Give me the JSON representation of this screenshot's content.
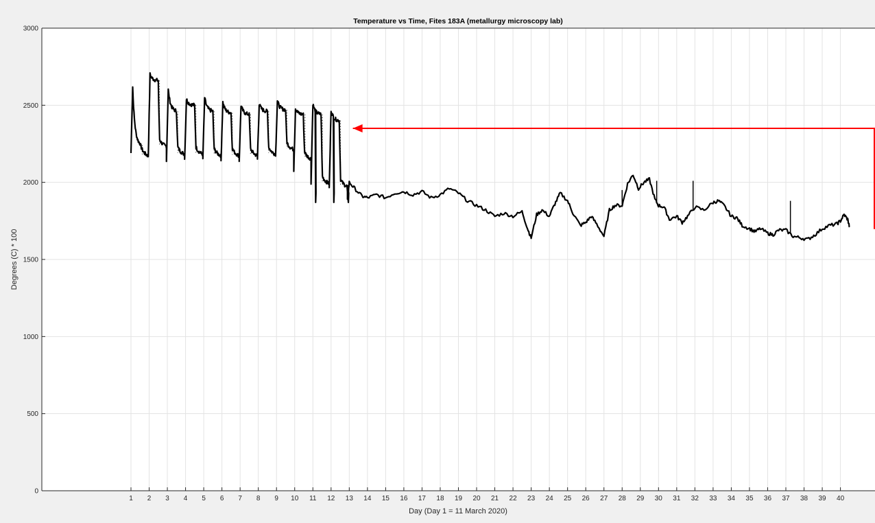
{
  "chart_data": {
    "type": "line",
    "title": "Temperature vs Time, Fites 183A (metallurgy microscopy lab)",
    "xlabel": "Day (Day 1 = 11 March 2020)",
    "ylabel": "Degrees (C) * 100",
    "xlim": [
      -3.9,
      41.9
    ],
    "ylim": [
      0,
      3000
    ],
    "xticks": [
      "1",
      "2",
      "3",
      "4",
      "5",
      "6",
      "7",
      "8",
      "9",
      "10",
      "11",
      "12",
      "13",
      "14",
      "15",
      "16",
      "17",
      "18",
      "19",
      "20",
      "21",
      "22",
      "23",
      "24",
      "25",
      "26",
      "27",
      "28",
      "29",
      "30",
      "31",
      "32",
      "33",
      "34",
      "35",
      "36",
      "37",
      "38",
      "39",
      "40"
    ],
    "yticks": [
      0,
      500,
      1000,
      1500,
      2000,
      2500,
      3000
    ],
    "grid": true,
    "series": [
      {
        "color": "#000000",
        "cycles": [
          {
            "start": 1.0,
            "low": 2190,
            "peak": 2620,
            "plateau": 2240,
            "settle": 2180
          },
          {
            "start": 1.95,
            "low": 2170,
            "peak": 2700,
            "plateau": 2660,
            "settle": 2240
          },
          {
            "start": 2.95,
            "low": 2140,
            "peak": 2600,
            "plateau": 2460,
            "settle": 2190
          },
          {
            "start": 3.95,
            "low": 2150,
            "peak": 2540,
            "plateau": 2500,
            "settle": 2190
          },
          {
            "start": 4.95,
            "low": 2150,
            "peak": 2550,
            "plateau": 2460,
            "settle": 2180
          },
          {
            "start": 5.95,
            "low": 2140,
            "peak": 2520,
            "plateau": 2450,
            "settle": 2180
          },
          {
            "start": 6.95,
            "low": 2140,
            "peak": 2500,
            "plateau": 2440,
            "settle": 2180
          },
          {
            "start": 7.95,
            "low": 2150,
            "peak": 2510,
            "plateau": 2460,
            "settle": 2190
          },
          {
            "start": 8.95,
            "low": 2180,
            "peak": 2530,
            "plateau": 2470,
            "settle": 2220
          },
          {
            "start": 9.95,
            "low": 2080,
            "peak": 2480,
            "plateau": 2440,
            "settle": 2160
          },
          {
            "start": 10.9,
            "low": 2000,
            "peak": 2510,
            "plateau": 2440,
            "settle": 2000
          },
          {
            "start": 11.9,
            "low": 1960,
            "peak": 2470,
            "plateau": 2400,
            "settle": 1980
          }
        ],
        "cycle_end": 12.9,
        "drop_times": [
          11.15,
          12.15,
          12.95
        ],
        "drop_low": 1870,
        "x": [
          12.9,
          13.0,
          13.3,
          13.7,
          14.0,
          14.5,
          15.0,
          15.5,
          16.0,
          16.5,
          17.0,
          17.5,
          18.0,
          18.5,
          19.0,
          19.5,
          20.0,
          20.5,
          21.0,
          21.5,
          22.0,
          22.5,
          22.8,
          23.0,
          23.3,
          23.6,
          24.0,
          24.3,
          24.6,
          25.0,
          25.3,
          25.7,
          26.0,
          26.3,
          26.6,
          27.0,
          27.3,
          27.6,
          28.0,
          28.3,
          28.6,
          28.9,
          29.2,
          29.5,
          29.8,
          30.0,
          30.3,
          30.6,
          31.0,
          31.3,
          31.6,
          32.0,
          32.5,
          33.0,
          33.3,
          33.6,
          34.0,
          34.3,
          34.6,
          35.0,
          35.3,
          35.6,
          36.0,
          36.3,
          36.6,
          37.0,
          37.4,
          37.8,
          38.2,
          38.6,
          39.0,
          39.4,
          39.8,
          40.0,
          40.2,
          40.4,
          40.5
        ],
        "y": [
          1880,
          2000,
          1960,
          1910,
          1900,
          1920,
          1900,
          1930,
          1940,
          1920,
          1940,
          1900,
          1920,
          1960,
          1930,
          1880,
          1850,
          1820,
          1780,
          1800,
          1780,
          1810,
          1700,
          1640,
          1790,
          1820,
          1780,
          1860,
          1930,
          1880,
          1800,
          1720,
          1740,
          1780,
          1730,
          1650,
          1820,
          1850,
          1850,
          1990,
          2050,
          1960,
          2000,
          2020,
          1890,
          1850,
          1840,
          1760,
          1780,
          1740,
          1780,
          1840,
          1820,
          1870,
          1880,
          1850,
          1780,
          1770,
          1720,
          1700,
          1680,
          1700,
          1670,
          1660,
          1690,
          1690,
          1650,
          1640,
          1630,
          1660,
          1700,
          1720,
          1730,
          1750,
          1790,
          1760,
          1710
        ],
        "spikes": [
          {
            "x": 28.0,
            "y": 1890
          },
          {
            "x": 29.9,
            "y": 1950
          },
          {
            "x": 31.9,
            "y": 1950
          },
          {
            "x": 37.25,
            "y": 1820
          }
        ]
      }
    ],
    "annotations": [
      {
        "type": "arrow",
        "color": "#ff0000",
        "points": [
          [
            42.5,
            1697
          ],
          [
            42.5,
            2350
          ],
          [
            13.2,
            2350
          ]
        ]
      }
    ]
  }
}
